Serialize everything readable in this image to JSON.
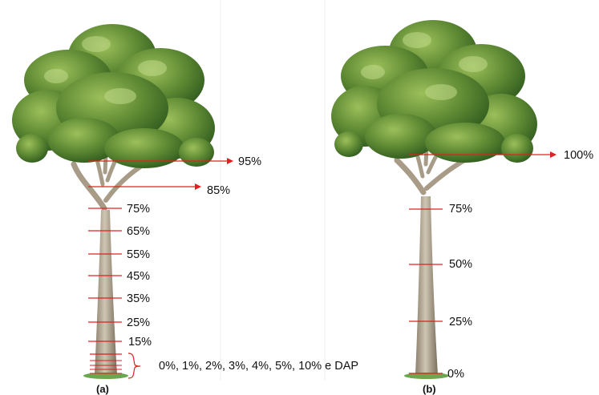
{
  "panel_a": {
    "caption": "(a)",
    "arrow_labels": [
      "95%",
      "85%"
    ],
    "labels": [
      "75%",
      "65%",
      "55%",
      "45%",
      "35%",
      "25%",
      "15%"
    ],
    "base_label": "0%, 1%, 2%, 3%, 4%, 5%, 10% e DAP"
  },
  "panel_b": {
    "caption": "(b)",
    "arrow_label": "100%",
    "labels": [
      "75%",
      "50%",
      "25%",
      "0%"
    ]
  },
  "colors": {
    "marker": "#e02020",
    "foliage": "#5f8a34",
    "trunk": "#b9ad99",
    "ground": "#6aa84f"
  }
}
